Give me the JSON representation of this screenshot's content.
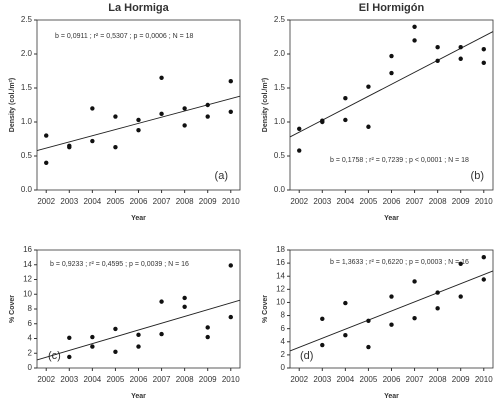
{
  "chart_data": [
    {
      "type": "scatter",
      "title": "La Hormiga",
      "x_label": "Year",
      "y_label": "Density (col./m²)",
      "panel_label": "(a)",
      "annotation": "b = 0,0911 ; r² = 0,5307 ; p = 0,0006 ; N = 18",
      "x": [
        2002,
        2002,
        2003,
        2003,
        2004,
        2004,
        2005,
        2005,
        2006,
        2006,
        2007,
        2007,
        2008,
        2008,
        2009,
        2009,
        2010,
        2010
      ],
      "values": [
        0.8,
        0.4,
        0.65,
        0.63,
        1.2,
        0.72,
        1.08,
        0.63,
        1.03,
        0.88,
        1.65,
        1.12,
        1.2,
        0.95,
        1.25,
        1.08,
        1.6,
        1.15
      ],
      "fit": {
        "x": [
          2001.6,
          2010.4
        ],
        "values": [
          0.58,
          1.38
        ]
      },
      "xlim": [
        2001.6,
        2010.4
      ],
      "xticks": [
        2002,
        2003,
        2004,
        2005,
        2006,
        2007,
        2008,
        2009,
        2010
      ],
      "ylim": [
        0,
        2.5
      ],
      "yticks": [
        {
          "value": 0,
          "label": "0.0"
        },
        0.5,
        {
          "value": 1,
          "label": "1.0"
        },
        1.5,
        {
          "value": 2,
          "label": "2.0"
        },
        2.5
      ],
      "color": "#111"
    },
    {
      "type": "scatter",
      "title": "El Hormigón",
      "x_label": "Year",
      "y_label": "Density (col./m²)",
      "panel_label": "(b)",
      "annotation": "b = 0,1758 ; r² = 0,7239 ; p < 0,0001 ; N = 18",
      "x": [
        2002,
        2002,
        2003,
        2003,
        2004,
        2004,
        2005,
        2005,
        2006,
        2006,
        2007,
        2007,
        2008,
        2008,
        2009,
        2009,
        2010,
        2010
      ],
      "values": [
        0.9,
        0.58,
        1.0,
        1.02,
        1.35,
        1.03,
        1.52,
        0.93,
        1.97,
        1.72,
        2.4,
        2.2,
        2.1,
        1.9,
        2.1,
        1.93,
        2.07,
        1.87
      ],
      "fit": {
        "x": [
          2001.6,
          2010.4
        ],
        "values": [
          0.78,
          2.33
        ]
      },
      "xlim": [
        2001.6,
        2010.4
      ],
      "xticks": [
        2002,
        2003,
        2004,
        2005,
        2006,
        2007,
        2008,
        2009,
        2010
      ],
      "ylim": [
        0,
        2.5
      ],
      "yticks": [
        {
          "value": 0,
          "label": "0.0"
        },
        0.5,
        {
          "value": 1,
          "label": "1.0"
        },
        1.5,
        {
          "value": 2,
          "label": "2.0"
        },
        2.5
      ],
      "color": "#111"
    },
    {
      "type": "scatter",
      "x_label": "Year",
      "y_label": "% Cover",
      "panel_label": "(c)",
      "annotation": "b = 0,9233 ; r² = 0,4595 ; p = 0,0039 ; N = 16",
      "x": [
        2003,
        2003,
        2004,
        2004,
        2005,
        2005,
        2006,
        2006,
        2007,
        2007,
        2008,
        2008,
        2009,
        2009,
        2010,
        2010
      ],
      "values": [
        4.1,
        1.5,
        4.2,
        2.9,
        5.3,
        2.2,
        4.5,
        2.9,
        9.0,
        4.6,
        9.5,
        8.3,
        5.5,
        4.2,
        13.9,
        6.9
      ],
      "fit": {
        "x": [
          2001.6,
          2010.4
        ],
        "values": [
          1.1,
          9.2
        ]
      },
      "xlim": [
        2001.6,
        2010.4
      ],
      "xticks": [
        2002,
        2003,
        2004,
        2005,
        2006,
        2007,
        2008,
        2009,
        2010
      ],
      "ylim": [
        0,
        16
      ],
      "yticks": [
        0,
        2,
        4,
        6,
        8,
        10,
        12,
        14,
        16
      ],
      "color": "#111"
    },
    {
      "type": "scatter",
      "x_label": "Year",
      "y_label": "% Cover",
      "panel_label": "(d)",
      "annotation": "b = 1,3633 ; r² = 0,6220 ; p = 0,0003 ; N = 16",
      "x": [
        2003,
        2003,
        2004,
        2004,
        2005,
        2005,
        2006,
        2006,
        2007,
        2007,
        2008,
        2008,
        2009,
        2009,
        2010,
        2010
      ],
      "values": [
        7.5,
        3.5,
        9.9,
        5.0,
        7.2,
        3.2,
        10.9,
        6.6,
        13.2,
        7.6,
        11.5,
        9.1,
        15.9,
        10.9,
        16.9,
        13.5
      ],
      "fit": {
        "x": [
          2001.6,
          2010.4
        ],
        "values": [
          2.6,
          14.8
        ]
      },
      "xlim": [
        2001.6,
        2010.4
      ],
      "xticks": [
        2002,
        2003,
        2004,
        2005,
        2006,
        2007,
        2008,
        2009,
        2010
      ],
      "ylim": [
        0,
        18
      ],
      "yticks": [
        0,
        2,
        4,
        6,
        8,
        10,
        12,
        14,
        16,
        18
      ],
      "color": "#111"
    }
  ]
}
